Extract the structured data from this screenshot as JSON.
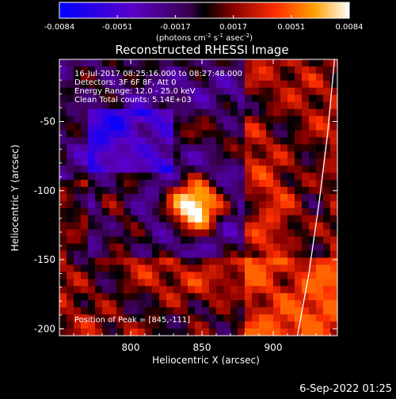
{
  "chart_data": {
    "type": "heatmap",
    "title": "Reconstructed RHESSI Image",
    "xlabel": "Heliocentric X (arcsec)",
    "ylabel": "Heliocentric Y (arcsec)",
    "xlim": [
      750,
      945
    ],
    "ylim": [
      -205,
      -5
    ],
    "xticks": [
      800,
      850,
      900
    ],
    "yticks": [
      -50,
      -100,
      -150,
      -200
    ],
    "colorbar": {
      "min": -0.0084,
      "max": 0.0084,
      "ticks": [
        "-0.0084",
        "-0.0051",
        "-0.0017",
        "0.0017",
        "0.0051",
        "0.0084"
      ],
      "unit_prefix": "(photons cm",
      "unit_exp1": "-2",
      "unit_mid": " s",
      "unit_exp2": "-1",
      "unit_mid2": " asec",
      "unit_exp3": "-2",
      "unit_suffix": ")"
    },
    "annotations": {
      "time": "16-Jul-2017 08:25:16.000 to 08:27:48.000",
      "detectors": "Detectors: 3F 6F 8F, Att 0",
      "energy": "Energy Range: 12.0 - 25.0 keV",
      "clean": "Clean    Total counts: 5.14E+03",
      "peak": "Position of Peak = [845,-111]"
    },
    "peak": {
      "x": 845,
      "y": -111,
      "value": 0.0084
    },
    "limb_curve": [
      [
        943,
        -5
      ],
      [
        938,
        -60
      ],
      [
        932,
        -110
      ],
      [
        925,
        -160
      ],
      [
        917,
        -205
      ]
    ]
  },
  "footer": {
    "timestamp": "6-Sep-2022 01:25"
  }
}
